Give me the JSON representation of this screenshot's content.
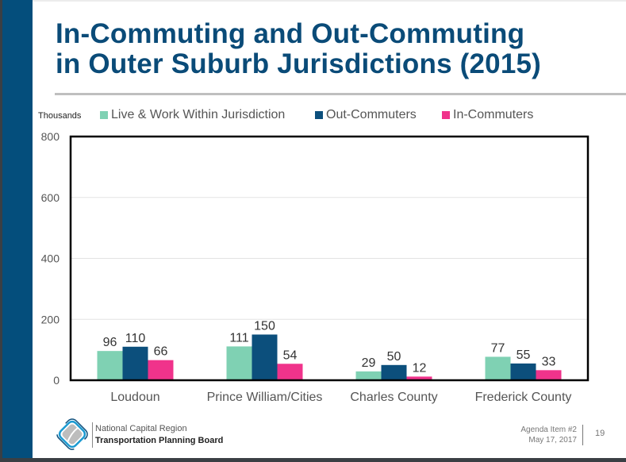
{
  "slide": {
    "title_lines": [
      "In-Commuting and Out-Commuting",
      "in Outer Suburb Jurisdictions (2015)"
    ],
    "footer": {
      "org_line1": "National Capital Region",
      "org_line2": "Transportation Planning Board",
      "agenda": "Agenda Item #2",
      "date": "May 17, 2017",
      "page_number": "19",
      "logo_icon": "tpb-logo-icon"
    },
    "colors": {
      "brand_blue": "#044e7c",
      "title_blue": "#0a4b78"
    }
  },
  "chart_data": {
    "type": "bar",
    "title": "In-Commuting and Out-Commuting in Outer Suburb Jurisdictions (2015)",
    "ylabel": "Thousands",
    "xlabel": "",
    "ylim": [
      0,
      800
    ],
    "yticks": [
      0,
      200,
      400,
      600,
      800
    ],
    "grid": true,
    "legend_position": "top",
    "categories": [
      "Loudoun",
      "Prince William/Cities",
      "Charles County",
      "Frederick County"
    ],
    "series": [
      {
        "name": "Live & Work Within Jurisdiction",
        "color": "#7fd1b3",
        "values": [
          96,
          111,
          29,
          77
        ]
      },
      {
        "name": "Out-Commuters",
        "color": "#0c4f7c",
        "values": [
          110,
          150,
          50,
          55
        ]
      },
      {
        "name": "In-Commuters",
        "color": "#f0338b",
        "values": [
          66,
          54,
          12,
          33
        ]
      }
    ]
  }
}
